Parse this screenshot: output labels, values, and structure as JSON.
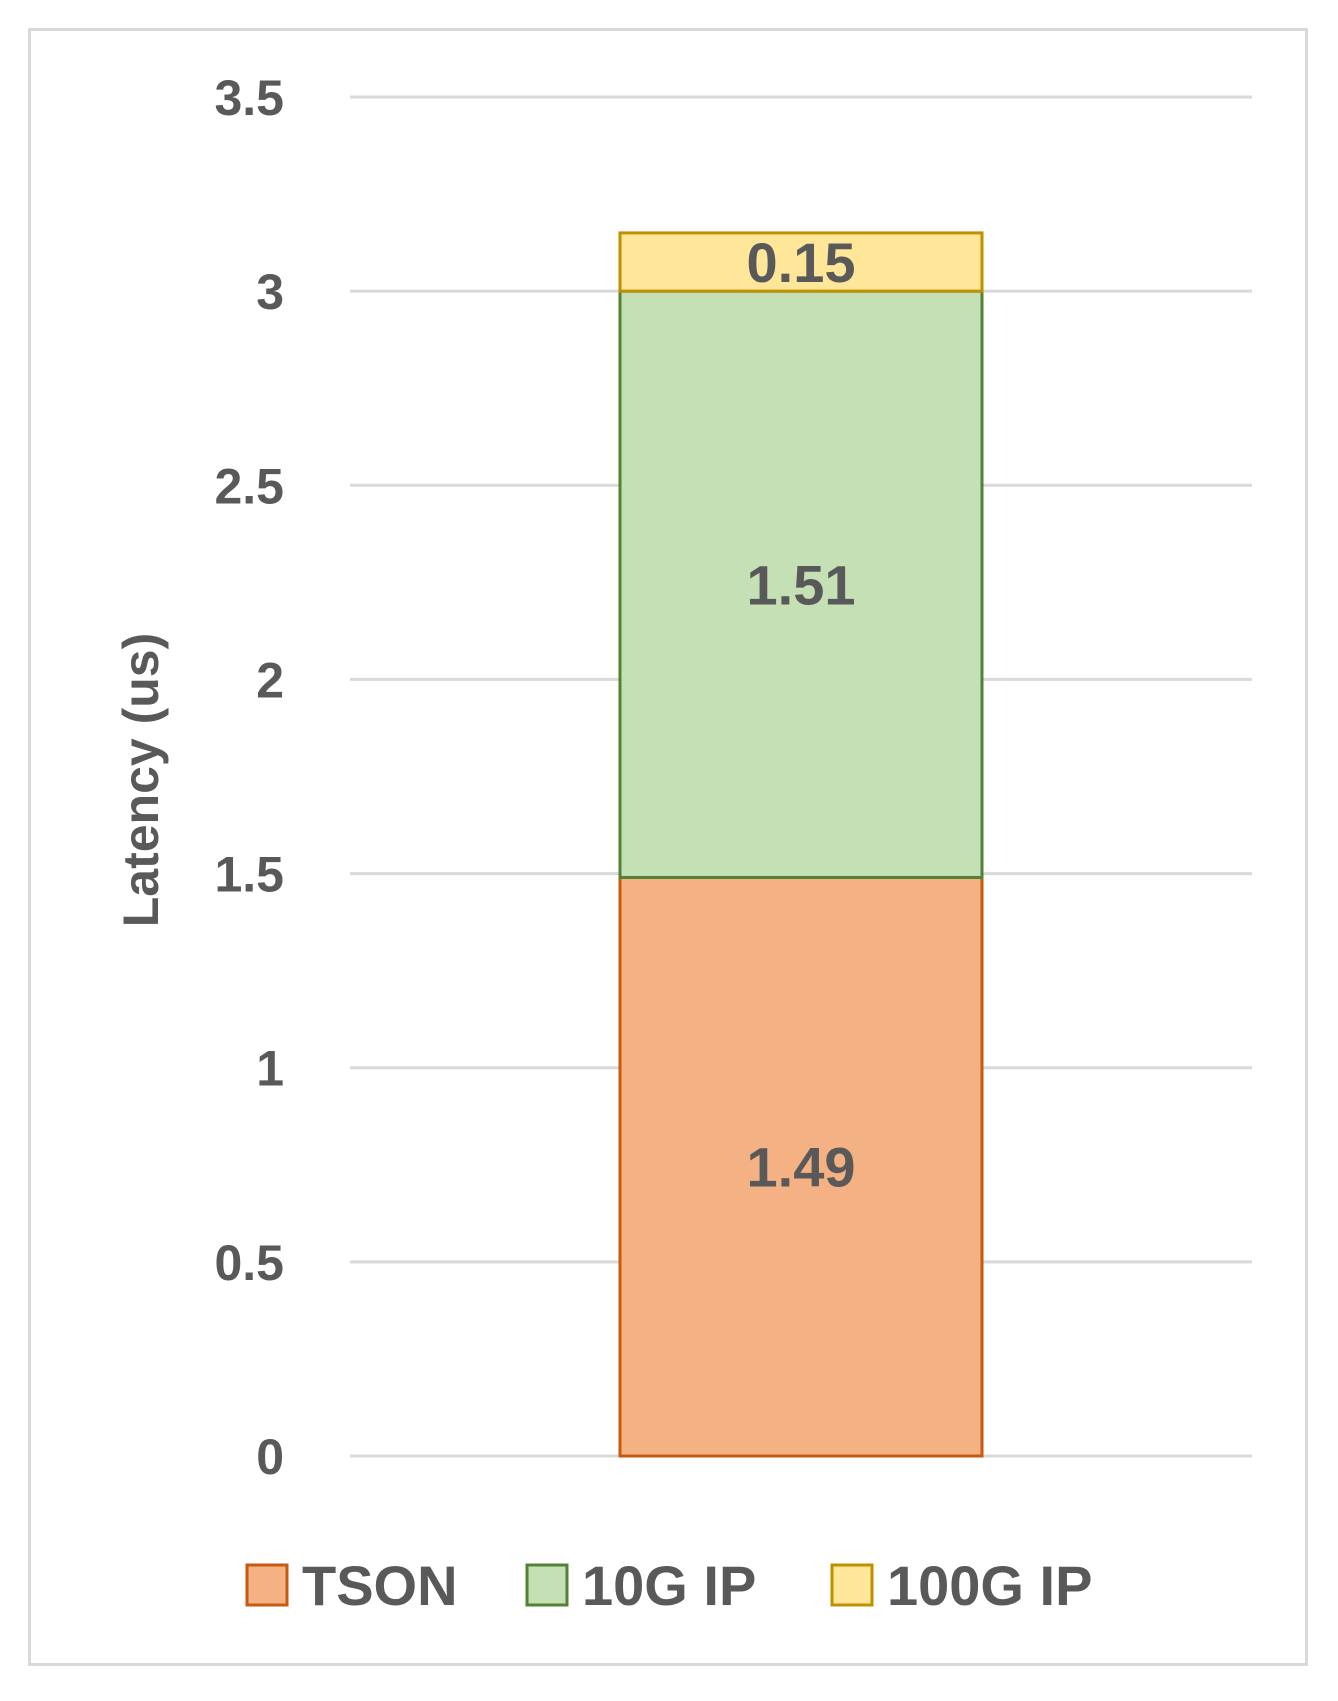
{
  "chart_data": {
    "type": "bar",
    "stacked": true,
    "categories": [
      ""
    ],
    "series": [
      {
        "name": "TSON",
        "values": [
          1.49
        ],
        "color": "#f4b183",
        "border": "#c55a11"
      },
      {
        "name": "10G IP",
        "values": [
          1.51
        ],
        "color": "#c5e0b4",
        "border": "#538135"
      },
      {
        "name": "100G IP",
        "values": [
          0.15
        ],
        "color": "#ffe699",
        "border": "#bf9000"
      }
    ],
    "data_labels": [
      "1.49",
      "1.51",
      "0.15"
    ],
    "title": "",
    "xlabel": "",
    "ylabel": "Latency (us)",
    "ylim": [
      0,
      3.5
    ],
    "yticks": [
      0,
      0.5,
      1,
      1.5,
      2,
      2.5,
      3,
      3.5
    ],
    "ytick_labels": [
      "0",
      "0.5",
      "1",
      "1.5",
      "2",
      "2.5",
      "3",
      "3.5"
    ],
    "grid": true,
    "legend": {
      "placement": "bottom",
      "entries": [
        "TSON",
        "10G IP",
        "100G IP"
      ]
    }
  }
}
